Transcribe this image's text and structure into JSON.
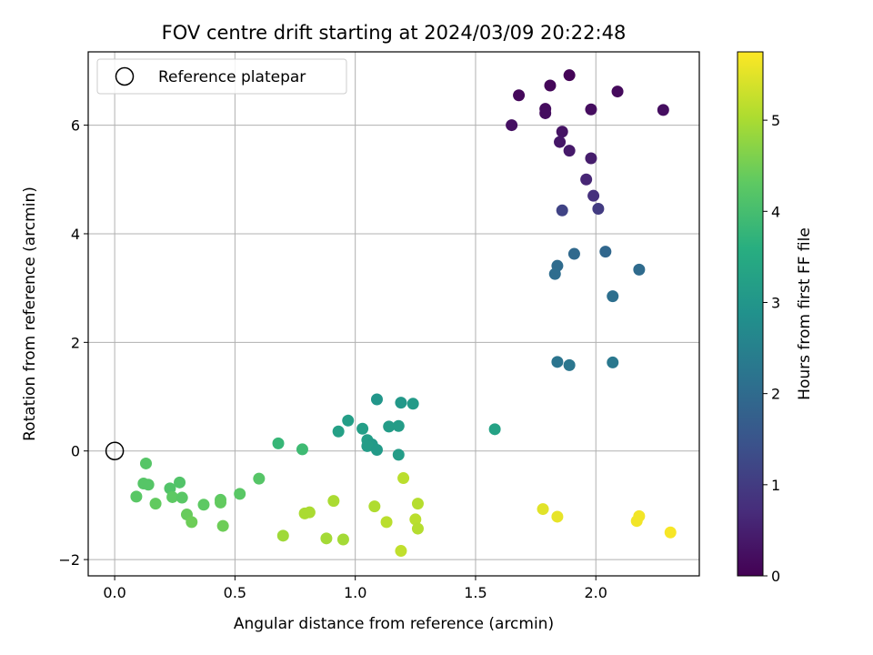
{
  "chart_data": {
    "type": "scatter",
    "title": "FOV centre drift starting at 2024/03/09 20:22:48",
    "xlabel": "Angular distance from reference (arcmin)",
    "ylabel": "Rotation from reference (arcmin)",
    "xlim": [
      -0.11,
      2.43
    ],
    "ylim": [
      -2.3,
      7.35
    ],
    "xticks": [
      0.0,
      0.5,
      1.0,
      1.5,
      2.0
    ],
    "xtick_labels": [
      "0.0",
      "0.5",
      "1.0",
      "1.5",
      "2.0"
    ],
    "yticks": [
      -2,
      0,
      2,
      4,
      6
    ],
    "ytick_labels": [
      "−2",
      "0",
      "2",
      "4",
      "6"
    ],
    "grid": true,
    "legend": {
      "placement": "top-left",
      "label": "Reference platepar"
    },
    "reference_point": {
      "x": 0.0,
      "y": 0.0
    },
    "colorbar": {
      "label": "Hours from first FF file",
      "colormap": "viridis",
      "range": [
        0,
        5.75
      ],
      "ticks": [
        0,
        1,
        2,
        3,
        4,
        5
      ],
      "tick_labels": [
        "0",
        "1",
        "2",
        "3",
        "4",
        "5"
      ]
    },
    "points": [
      {
        "x": 1.89,
        "y": 6.92,
        "c": 0.05
      },
      {
        "x": 1.81,
        "y": 6.73,
        "c": 0.1
      },
      {
        "x": 1.68,
        "y": 6.55,
        "c": 0.12
      },
      {
        "x": 2.09,
        "y": 6.62,
        "c": 0.15
      },
      {
        "x": 1.79,
        "y": 6.3,
        "c": 0.18
      },
      {
        "x": 1.79,
        "y": 6.22,
        "c": 0.2
      },
      {
        "x": 1.98,
        "y": 6.29,
        "c": 0.2
      },
      {
        "x": 2.28,
        "y": 6.28,
        "c": 0.22
      },
      {
        "x": 1.65,
        "y": 6.0,
        "c": 0.25
      },
      {
        "x": 1.86,
        "y": 5.88,
        "c": 0.3
      },
      {
        "x": 1.85,
        "y": 5.69,
        "c": 0.35
      },
      {
        "x": 1.89,
        "y": 5.53,
        "c": 0.4
      },
      {
        "x": 1.98,
        "y": 5.39,
        "c": 0.45
      },
      {
        "x": 1.96,
        "y": 5.0,
        "c": 0.6
      },
      {
        "x": 1.99,
        "y": 4.7,
        "c": 0.8
      },
      {
        "x": 2.01,
        "y": 4.46,
        "c": 1.0
      },
      {
        "x": 1.86,
        "y": 4.43,
        "c": 1.15
      },
      {
        "x": 2.04,
        "y": 3.67,
        "c": 1.9
      },
      {
        "x": 1.91,
        "y": 3.63,
        "c": 1.95
      },
      {
        "x": 1.84,
        "y": 3.41,
        "c": 2.0
      },
      {
        "x": 1.83,
        "y": 3.26,
        "c": 2.05
      },
      {
        "x": 2.18,
        "y": 3.34,
        "c": 2.0
      },
      {
        "x": 2.07,
        "y": 2.85,
        "c": 2.1
      },
      {
        "x": 1.84,
        "y": 1.64,
        "c": 2.2
      },
      {
        "x": 1.89,
        "y": 1.58,
        "c": 2.25
      },
      {
        "x": 2.07,
        "y": 1.63,
        "c": 2.3
      },
      {
        "x": 1.09,
        "y": 0.95,
        "c": 3.0
      },
      {
        "x": 1.19,
        "y": 0.89,
        "c": 3.05
      },
      {
        "x": 1.24,
        "y": 0.87,
        "c": 3.1
      },
      {
        "x": 0.97,
        "y": 0.56,
        "c": 3.2
      },
      {
        "x": 1.58,
        "y": 0.4,
        "c": 3.3
      },
      {
        "x": 1.03,
        "y": 0.41,
        "c": 3.2
      },
      {
        "x": 1.14,
        "y": 0.45,
        "c": 3.15
      },
      {
        "x": 1.18,
        "y": 0.46,
        "c": 3.15
      },
      {
        "x": 0.93,
        "y": 0.36,
        "c": 3.25
      },
      {
        "x": 1.05,
        "y": 0.2,
        "c": 3.2
      },
      {
        "x": 1.07,
        "y": 0.12,
        "c": 3.1
      },
      {
        "x": 1.05,
        "y": 0.09,
        "c": 3.15
      },
      {
        "x": 1.09,
        "y": 0.02,
        "c": 3.1
      },
      {
        "x": 1.18,
        "y": -0.07,
        "c": 3.15
      },
      {
        "x": 0.68,
        "y": 0.14,
        "c": 3.8
      },
      {
        "x": 0.78,
        "y": 0.03,
        "c": 3.9
      },
      {
        "x": 0.13,
        "y": -0.23,
        "c": 4.2
      },
      {
        "x": 0.6,
        "y": -0.51,
        "c": 4.2
      },
      {
        "x": 0.12,
        "y": -0.6,
        "c": 4.2
      },
      {
        "x": 0.14,
        "y": -0.62,
        "c": 4.2
      },
      {
        "x": 0.27,
        "y": -0.58,
        "c": 4.15
      },
      {
        "x": 0.23,
        "y": -0.69,
        "c": 4.15
      },
      {
        "x": 0.52,
        "y": -0.79,
        "c": 4.25
      },
      {
        "x": 0.09,
        "y": -0.84,
        "c": 4.25
      },
      {
        "x": 0.24,
        "y": -0.85,
        "c": 4.3
      },
      {
        "x": 0.28,
        "y": -0.86,
        "c": 4.25
      },
      {
        "x": 0.44,
        "y": -0.9,
        "c": 4.3
      },
      {
        "x": 0.44,
        "y": -0.95,
        "c": 4.35
      },
      {
        "x": 0.17,
        "y": -0.97,
        "c": 4.35
      },
      {
        "x": 0.37,
        "y": -0.99,
        "c": 4.3
      },
      {
        "x": 0.3,
        "y": -1.17,
        "c": 4.4
      },
      {
        "x": 0.32,
        "y": -1.31,
        "c": 4.45
      },
      {
        "x": 0.45,
        "y": -1.38,
        "c": 4.45
      },
      {
        "x": 1.2,
        "y": -0.5,
        "c": 5.15
      },
      {
        "x": 0.91,
        "y": -0.92,
        "c": 5.0
      },
      {
        "x": 1.26,
        "y": -0.97,
        "c": 5.1
      },
      {
        "x": 1.08,
        "y": -1.02,
        "c": 5.05
      },
      {
        "x": 0.81,
        "y": -1.13,
        "c": 5.0
      },
      {
        "x": 0.79,
        "y": -1.15,
        "c": 5.0
      },
      {
        "x": 1.25,
        "y": -1.26,
        "c": 5.15
      },
      {
        "x": 1.13,
        "y": -1.31,
        "c": 5.15
      },
      {
        "x": 1.26,
        "y": -1.43,
        "c": 5.1
      },
      {
        "x": 0.7,
        "y": -1.56,
        "c": 4.9
      },
      {
        "x": 0.88,
        "y": -1.61,
        "c": 4.95
      },
      {
        "x": 0.95,
        "y": -1.63,
        "c": 4.95
      },
      {
        "x": 1.19,
        "y": -1.84,
        "c": 5.2
      },
      {
        "x": 1.78,
        "y": -1.07,
        "c": 5.5
      },
      {
        "x": 1.84,
        "y": -1.21,
        "c": 5.55
      },
      {
        "x": 2.18,
        "y": -1.2,
        "c": 5.65
      },
      {
        "x": 2.17,
        "y": -1.29,
        "c": 5.65
      },
      {
        "x": 2.31,
        "y": -1.5,
        "c": 5.7
      }
    ]
  }
}
